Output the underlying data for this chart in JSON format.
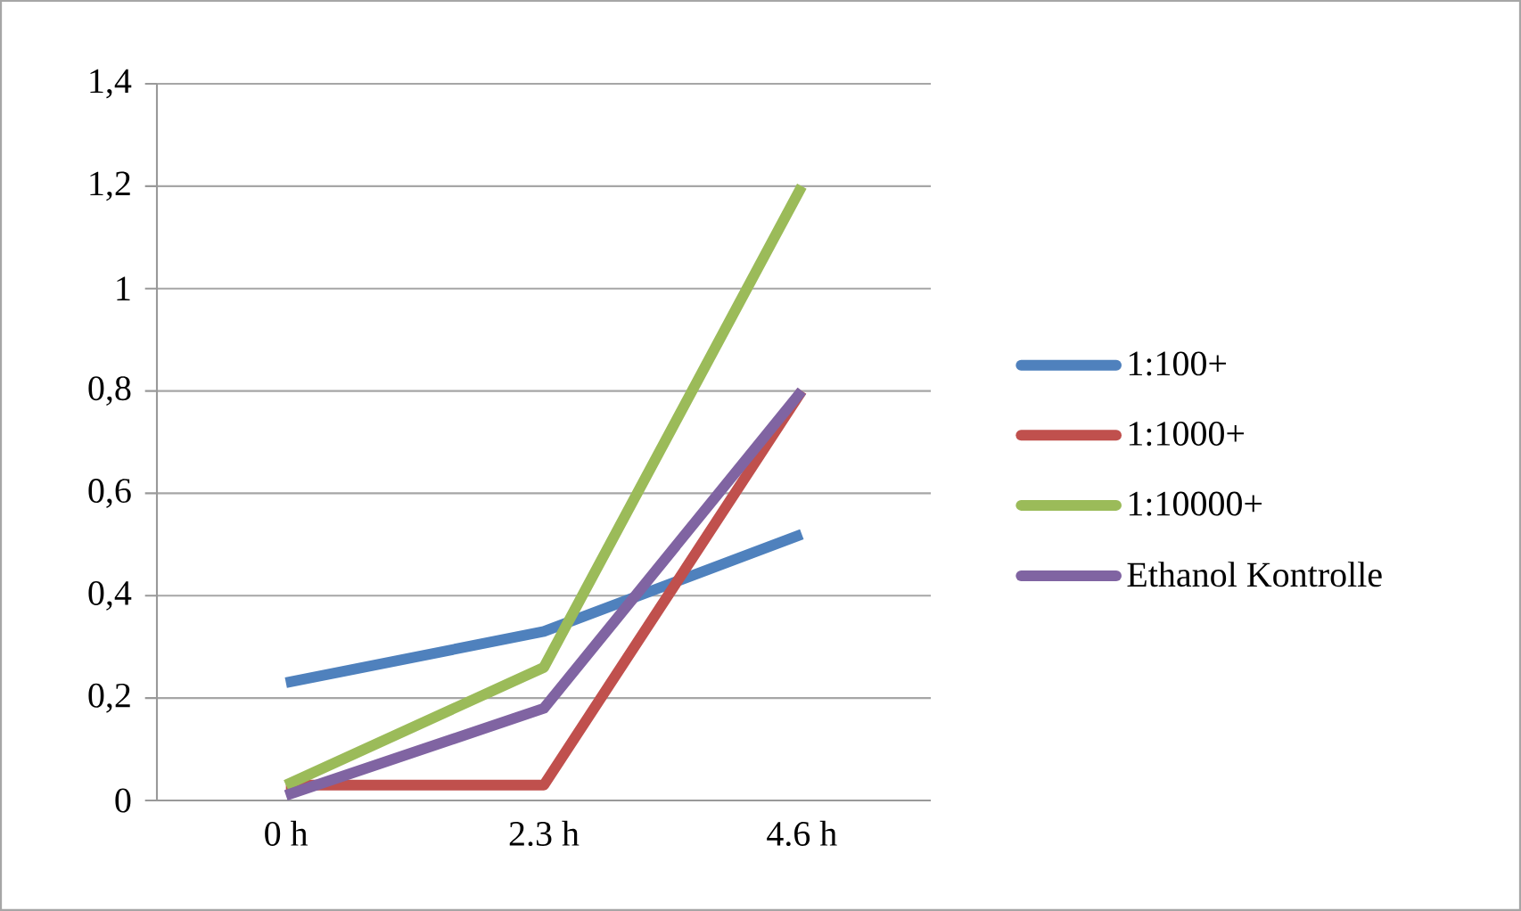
{
  "chart_data": {
    "type": "line",
    "categories": [
      "0 h",
      "2.3 h",
      "4.6 h"
    ],
    "series": [
      {
        "name": "1:100+",
        "color": "#4f81bd",
        "values": [
          0.23,
          0.33,
          0.52
        ]
      },
      {
        "name": "1:1000+",
        "color": "#c0504d",
        "values": [
          0.03,
          0.03,
          0.8
        ]
      },
      {
        "name": "1:10000+",
        "color": "#9bbb59",
        "values": [
          0.03,
          0.26,
          1.2
        ]
      },
      {
        "name": "Ethanol Kontrolle",
        "color": "#8064a2",
        "values": [
          0.01,
          0.18,
          0.8
        ]
      }
    ],
    "ylim": [
      0,
      1.4
    ],
    "yticks": [
      0,
      {
        "value": 0.2,
        "label": "0,2"
      },
      {
        "value": 0.4,
        "label": "0,4"
      },
      {
        "value": 0.6,
        "label": "0,6"
      },
      {
        "value": 0.8,
        "label": "0,8"
      },
      1,
      {
        "value": 1.2,
        "label": "1,2"
      },
      {
        "value": 1.4,
        "label": "1,4"
      }
    ],
    "grid": "y",
    "legend": "right",
    "marker": "none",
    "line_style": "solid"
  }
}
